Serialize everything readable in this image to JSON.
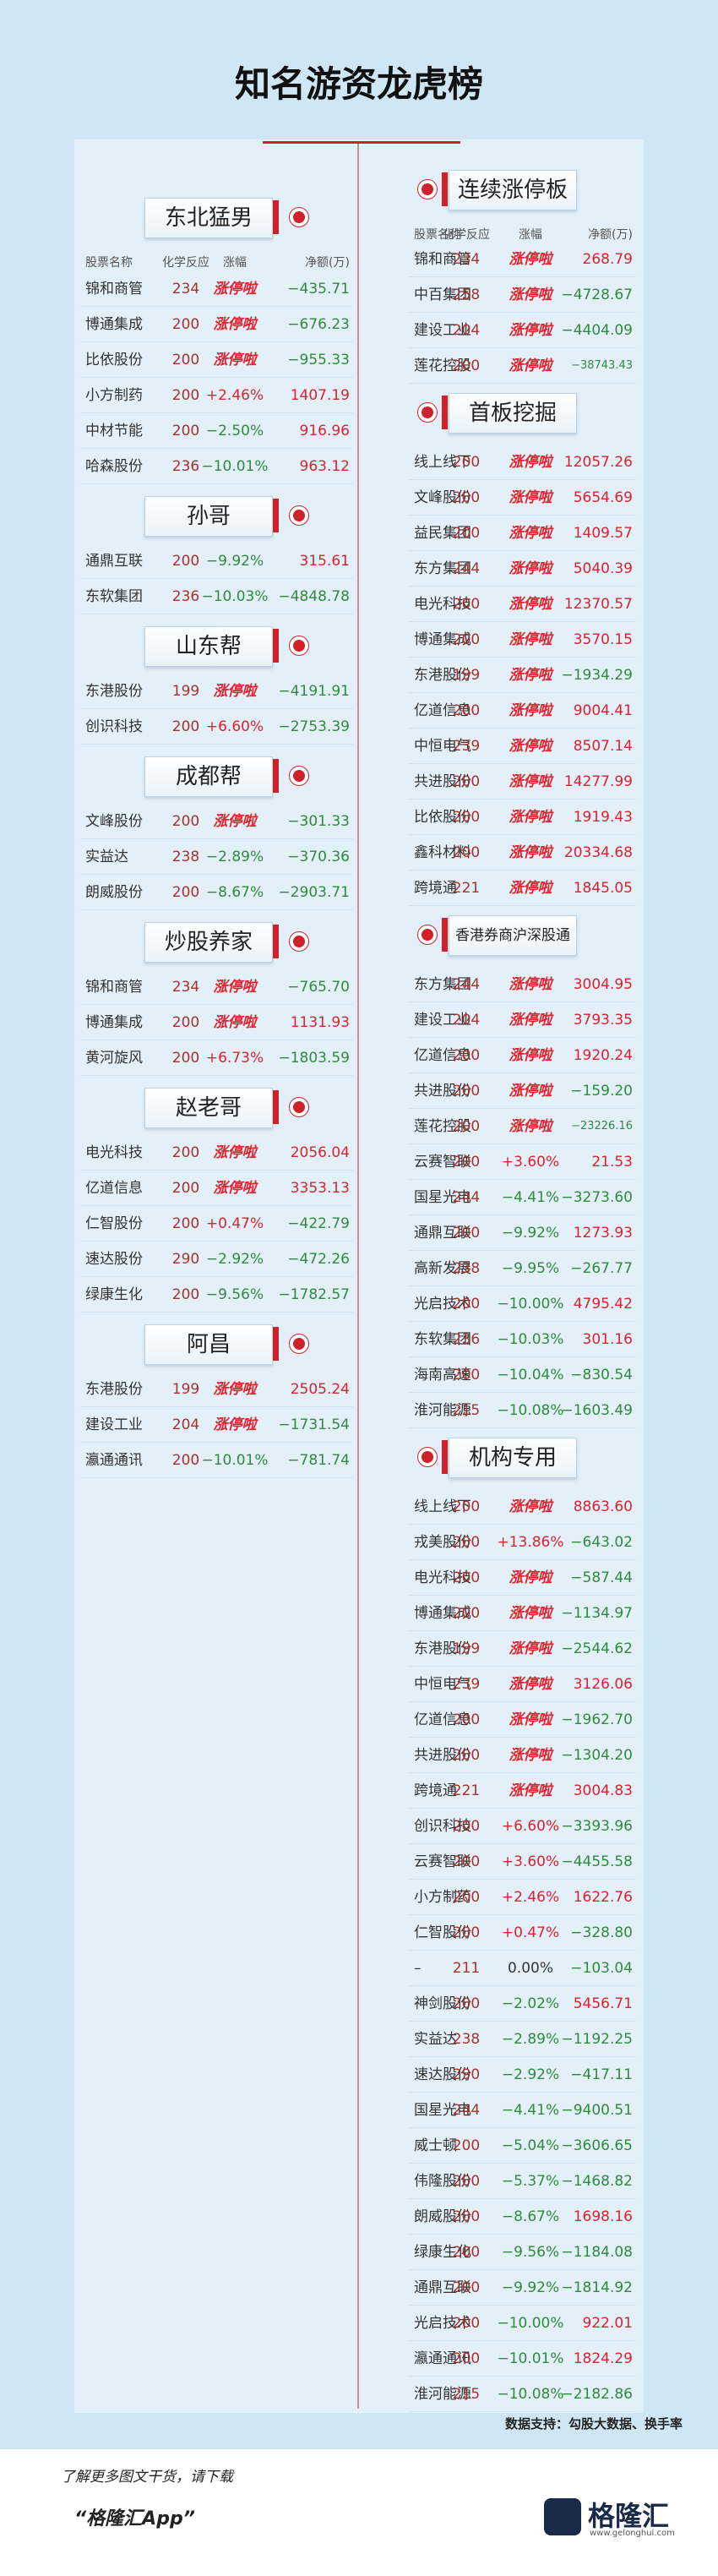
{
  "title": "知名游资龙虎榜",
  "columns": [
    "股票名称",
    "化学反应",
    "涨幅",
    "净额(万)"
  ],
  "left": [
    {
      "name": "东北猛男",
      "rows": [
        [
          "锦和商管",
          "234",
          "涨停啦",
          "−435.71"
        ],
        [
          "博通集成",
          "200",
          "涨停啦",
          "−676.23"
        ],
        [
          "比依股份",
          "200",
          "涨停啦",
          "−955.33"
        ],
        [
          "小方制药",
          "200",
          "+2.46%",
          "1407.19"
        ],
        [
          "中材节能",
          "200",
          "−2.50%",
          "916.96"
        ],
        [
          "哈森股份",
          "236",
          "−10.01%",
          "963.12"
        ]
      ]
    },
    {
      "name": "孙哥",
      "rows": [
        [
          "通鼎互联",
          "200",
          "−9.92%",
          "315.61"
        ],
        [
          "东软集团",
          "236",
          "−10.03%",
          "−4848.78"
        ]
      ]
    },
    {
      "name": "山东帮",
      "rows": [
        [
          "东港股份",
          "199",
          "涨停啦",
          "−4191.91"
        ],
        [
          "创识科技",
          "200",
          "+6.60%",
          "−2753.39"
        ]
      ]
    },
    {
      "name": "成都帮",
      "rows": [
        [
          "文峰股份",
          "200",
          "涨停啦",
          "−301.33"
        ],
        [
          "实益达",
          "238",
          "−2.89%",
          "−370.36"
        ],
        [
          "朗威股份",
          "200",
          "−8.67%",
          "−2903.71"
        ]
      ]
    },
    {
      "name": "炒股养家",
      "rows": [
        [
          "锦和商管",
          "234",
          "涨停啦",
          "−765.70"
        ],
        [
          "博通集成",
          "200",
          "涨停啦",
          "1131.93"
        ],
        [
          "黄河旋风",
          "200",
          "+6.73%",
          "−1803.59"
        ]
      ]
    },
    {
      "name": "赵老哥",
      "rows": [
        [
          "电光科技",
          "200",
          "涨停啦",
          "2056.04"
        ],
        [
          "亿道信息",
          "200",
          "涨停啦",
          "3353.13"
        ],
        [
          "仁智股份",
          "200",
          "+0.47%",
          "−422.79"
        ],
        [
          "速达股份",
          "290",
          "−2.92%",
          "−472.26"
        ],
        [
          "绿康生化",
          "200",
          "−9.56%",
          "−1782.57"
        ]
      ]
    },
    {
      "name": "阿昌",
      "rows": [
        [
          "东港股份",
          "199",
          "涨停啦",
          "2505.24"
        ],
        [
          "建设工业",
          "204",
          "涨停啦",
          "−1731.54"
        ],
        [
          "瀛通通讯",
          "200",
          "−10.01%",
          "−781.74"
        ]
      ]
    }
  ],
  "right": [
    {
      "name": "连续涨停板",
      "rows": [
        [
          "锦和商管",
          "234",
          "涨停啦",
          "268.79"
        ],
        [
          "中百集团",
          "258",
          "涨停啦",
          "−4728.67"
        ],
        [
          "建设工业",
          "204",
          "涨停啦",
          "−4404.09"
        ],
        [
          "莲花控股",
          "200",
          "涨停啦",
          "−38743.43"
        ]
      ]
    },
    {
      "name": "首板挖掘",
      "rows": [
        [
          "线上线下",
          "200",
          "涨停啦",
          "12057.26"
        ],
        [
          "文峰股份",
          "200",
          "涨停啦",
          "5654.69"
        ],
        [
          "益民集团",
          "200",
          "涨停啦",
          "1409.57"
        ],
        [
          "东方集团",
          "244",
          "涨停啦",
          "5040.39"
        ],
        [
          "电光科技",
          "200",
          "涨停啦",
          "12370.57"
        ],
        [
          "博通集成",
          "200",
          "涨停啦",
          "3570.15"
        ],
        [
          "东港股份",
          "199",
          "涨停啦",
          "−1934.29"
        ],
        [
          "亿道信息",
          "200",
          "涨停啦",
          "9004.41"
        ],
        [
          "中恒电气",
          "239",
          "涨停啦",
          "8507.14"
        ],
        [
          "共进股份",
          "200",
          "涨停啦",
          "14277.99"
        ],
        [
          "比依股份",
          "200",
          "涨停啦",
          "1919.43"
        ],
        [
          "鑫科材料",
          "200",
          "涨停啦",
          "20334.68"
        ],
        [
          "跨境通",
          "221",
          "涨停啦",
          "1845.05"
        ]
      ]
    },
    {
      "name": "香港券商沪深股通",
      "rows": [
        [
          "东方集团",
          "244",
          "涨停啦",
          "3004.95"
        ],
        [
          "建设工业",
          "204",
          "涨停啦",
          "3793.35"
        ],
        [
          "亿道信息",
          "200",
          "涨停啦",
          "1920.24"
        ],
        [
          "共进股份",
          "200",
          "涨停啦",
          "−159.20"
        ],
        [
          "莲花控股",
          "200",
          "涨停啦",
          "−23226.16"
        ],
        [
          "云赛智联",
          "200",
          "+3.60%",
          "21.53"
        ],
        [
          "国星光电",
          "244",
          "−4.41%",
          "−3273.60"
        ],
        [
          "通鼎互联",
          "200",
          "−9.92%",
          "1273.93"
        ],
        [
          "高新发展",
          "238",
          "−9.95%",
          "−267.77"
        ],
        [
          "光启技术",
          "200",
          "−10.00%",
          "4795.42"
        ],
        [
          "东软集团",
          "236",
          "−10.03%",
          "301.16"
        ],
        [
          "海南高速",
          "200",
          "−10.04%",
          "−830.54"
        ],
        [
          "淮河能源",
          "215",
          "−10.08%",
          "−1603.49"
        ]
      ]
    },
    {
      "name": "机构专用",
      "rows": [
        [
          "线上线下",
          "200",
          "涨停啦",
          "8863.60"
        ],
        [
          "戎美股份",
          "200",
          "+13.86%",
          "−643.02"
        ],
        [
          "电光科技",
          "200",
          "涨停啦",
          "−587.44"
        ],
        [
          "博通集成",
          "200",
          "涨停啦",
          "−1134.97"
        ],
        [
          "东港股份",
          "199",
          "涨停啦",
          "−2544.62"
        ],
        [
          "中恒电气",
          "239",
          "涨停啦",
          "3126.06"
        ],
        [
          "亿道信息",
          "200",
          "涨停啦",
          "−1962.70"
        ],
        [
          "共进股份",
          "200",
          "涨停啦",
          "−1304.20"
        ],
        [
          "跨境通",
          "221",
          "涨停啦",
          "3004.83"
        ],
        [
          "创识科技",
          "200",
          "+6.60%",
          "−3393.96"
        ],
        [
          "云赛智联",
          "200",
          "+3.60%",
          "−4455.58"
        ],
        [
          "小方制药",
          "200",
          "+2.46%",
          "1622.76"
        ],
        [
          "仁智股份",
          "200",
          "+0.47%",
          "−328.80"
        ],
        [
          "–",
          "211",
          "0.00%",
          "−103.04"
        ],
        [
          "神剑股份",
          "200",
          "−2.02%",
          "5456.71"
        ],
        [
          "实益达",
          "238",
          "−2.89%",
          "−1192.25"
        ],
        [
          "速达股份",
          "290",
          "−2.92%",
          "−417.11"
        ],
        [
          "国星光电",
          "244",
          "−4.41%",
          "−9400.51"
        ],
        [
          "威士顿",
          "200",
          "−5.04%",
          "−3606.65"
        ],
        [
          "伟隆股份",
          "200",
          "−5.37%",
          "−1468.82"
        ],
        [
          "朗威股份",
          "200",
          "−8.67%",
          "1698.16"
        ],
        [
          "绿康生化",
          "200",
          "−9.56%",
          "−1184.08"
        ],
        [
          "通鼎互联",
          "200",
          "−9.92%",
          "−1814.92"
        ],
        [
          "光启技术",
          "200",
          "−10.00%",
          "922.01"
        ],
        [
          "瀛通通讯",
          "200",
          "−10.01%",
          "1824.29"
        ],
        [
          "淮河能源",
          "215",
          "−10.08%",
          "−2182.86"
        ]
      ]
    }
  ],
  "footer": {
    "source": "数据支持：勾股大数据、换手率",
    "cta": "了解更多图文干货，请下载",
    "app": "“格隆汇App”",
    "brand": "格隆汇",
    "url": "www.gelonghui.com"
  }
}
